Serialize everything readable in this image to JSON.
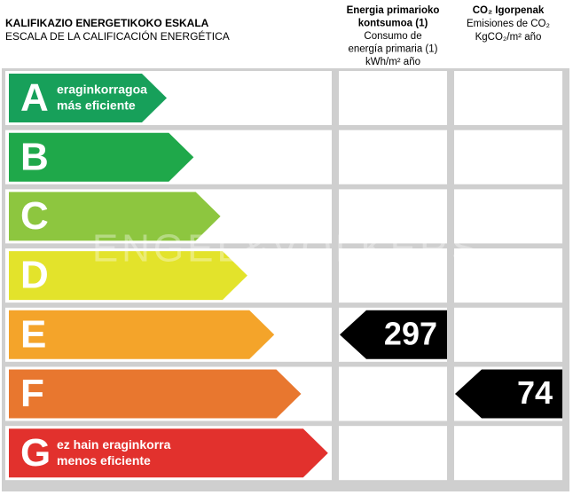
{
  "header": {
    "title": "KALIFIKAZIO ENERGETIKOKO ESKALA",
    "subtitle": "ESCALA DE LA CALIFICACIÓN ENERGÉTICA",
    "consumption_header": [
      "Energia primarioko",
      "kontsumoa (1)",
      "Consumo de",
      "energía primaria (1)",
      "kWh/m² año"
    ],
    "emissions_header": [
      "CO₂ Igorpenak",
      "Emisiones de CO₂",
      "KgCO₂/m² año"
    ]
  },
  "watermark": "ENGEL&VÖLKERS",
  "rows": [
    {
      "letter": "A",
      "color": "#17a05a",
      "lines": [
        "eraginkorragoa",
        "más eficiente"
      ]
    },
    {
      "letter": "B",
      "color": "#1fa84a"
    },
    {
      "letter": "C",
      "color": "#8dc63f"
    },
    {
      "letter": "D",
      "color": "#e3e32b"
    },
    {
      "letter": "E",
      "color": "#f4a42a",
      "consumption": 297
    },
    {
      "letter": "F",
      "color": "#e8772f",
      "emissions": 74
    },
    {
      "letter": "G",
      "color": "#e2312d",
      "lines": [
        "ez hain eraginkorra",
        "menos eficiente"
      ]
    }
  ]
}
